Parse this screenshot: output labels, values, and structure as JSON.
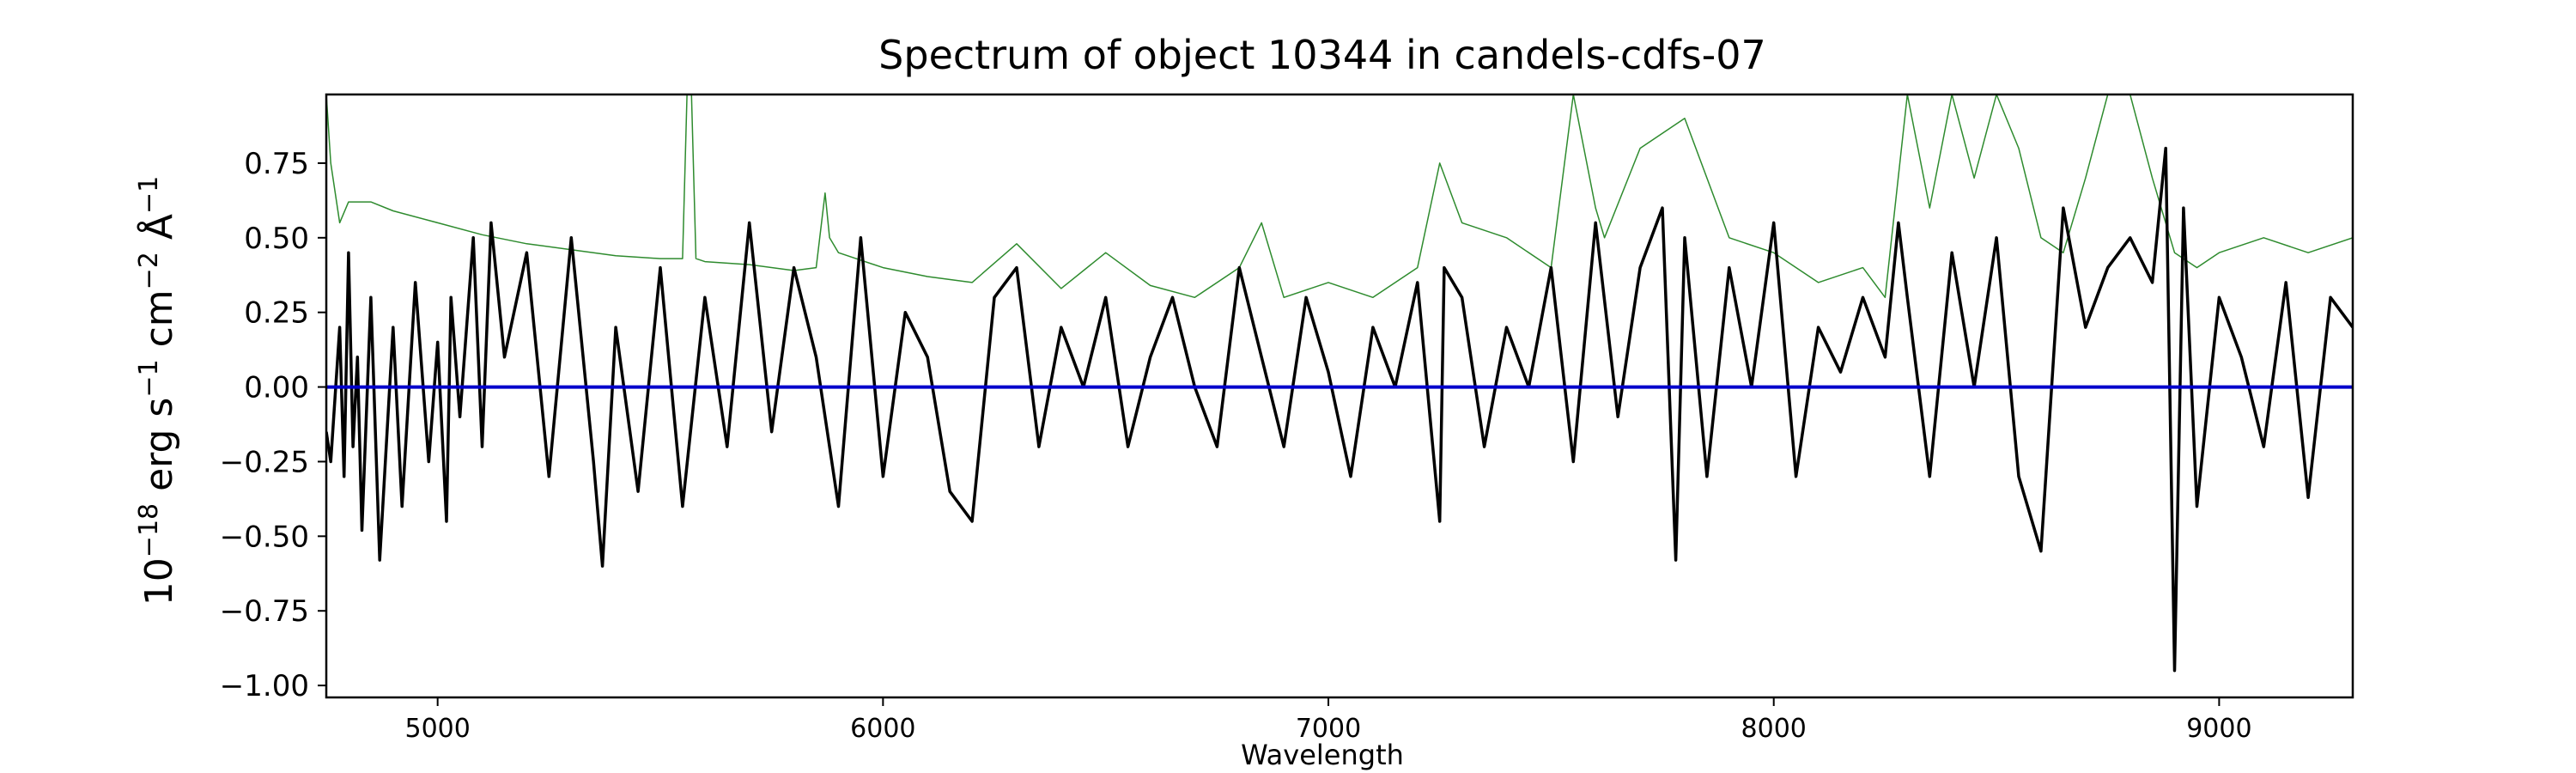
{
  "chart_data": {
    "type": "line",
    "title": "Spectrum of object 10344 in candels-cdfs-07",
    "xlabel": "Wavelength",
    "ylabel_base": "10",
    "ylabel_exp": "−18",
    "ylabel_units": [
      {
        "text": " erg s",
        "sup": "−1"
      },
      {
        "text": " cm",
        "sup": "−2"
      },
      {
        "text": " Å",
        "sup": "−1"
      }
    ],
    "xlim": [
      4750,
      9300
    ],
    "ylim": [
      -1.04,
      0.98
    ],
    "x_ticks": [
      5000,
      6000,
      7000,
      8000,
      9000
    ],
    "x_tick_labels": [
      "5000",
      "6000",
      "7000",
      "8000",
      "9000"
    ],
    "y_ticks": [
      -1.0,
      -0.75,
      -0.5,
      -0.25,
      0.0,
      0.25,
      0.5,
      0.75
    ],
    "y_tick_labels": [
      "−1.00",
      "−0.75",
      "−0.50",
      "−0.25",
      "0.00",
      "0.25",
      "0.50",
      "0.75"
    ],
    "grid": false,
    "colors": {
      "flux": "#000000",
      "error": "#2e8b2e",
      "zero": "#0000cc"
    },
    "series": [
      {
        "key": "error",
        "x": [
          4750,
          4760,
          4780,
          4800,
          4850,
          4900,
          5000,
          5100,
          5200,
          5300,
          5400,
          5500,
          5550,
          5560,
          5570,
          5580,
          5600,
          5700,
          5800,
          5850,
          5870,
          5880,
          5900,
          6000,
          6100,
          6200,
          6300,
          6400,
          6500,
          6600,
          6700,
          6800,
          6850,
          6900,
          7000,
          7100,
          7200,
          7250,
          7300,
          7400,
          7500,
          7550,
          7600,
          7620,
          7700,
          7800,
          7900,
          8000,
          8100,
          8200,
          8250,
          8300,
          8350,
          8400,
          8450,
          8500,
          8550,
          8600,
          8650,
          8700,
          8750,
          8780,
          8800,
          8850,
          8900,
          8950,
          9000,
          9100,
          9200,
          9300
        ],
        "y": [
          0.98,
          0.75,
          0.55,
          0.62,
          0.62,
          0.59,
          0.55,
          0.51,
          0.48,
          0.46,
          0.44,
          0.43,
          0.43,
          0.98,
          0.98,
          0.43,
          0.42,
          0.41,
          0.39,
          0.4,
          0.65,
          0.5,
          0.45,
          0.4,
          0.37,
          0.35,
          0.48,
          0.33,
          0.45,
          0.34,
          0.3,
          0.4,
          0.55,
          0.3,
          0.35,
          0.3,
          0.4,
          0.75,
          0.55,
          0.5,
          0.4,
          0.98,
          0.6,
          0.5,
          0.8,
          0.9,
          0.5,
          0.45,
          0.35,
          0.4,
          0.3,
          0.98,
          0.6,
          0.98,
          0.7,
          0.98,
          0.8,
          0.5,
          0.45,
          0.7,
          0.98,
          0.98,
          0.98,
          0.7,
          0.45,
          0.4,
          0.45,
          0.5,
          0.45,
          0.5
        ]
      },
      {
        "key": "flux",
        "x": [
          4750,
          4760,
          4780,
          4790,
          4800,
          4810,
          4820,
          4830,
          4850,
          4870,
          4900,
          4920,
          4950,
          4980,
          5000,
          5020,
          5030,
          5050,
          5080,
          5100,
          5120,
          5150,
          5200,
          5250,
          5300,
          5350,
          5370,
          5400,
          5450,
          5500,
          5550,
          5600,
          5650,
          5700,
          5750,
          5800,
          5850,
          5900,
          5950,
          6000,
          6050,
          6100,
          6150,
          6200,
          6250,
          6300,
          6350,
          6400,
          6450,
          6500,
          6550,
          6600,
          6650,
          6700,
          6750,
          6800,
          6850,
          6900,
          6950,
          7000,
          7050,
          7100,
          7150,
          7200,
          7250,
          7260,
          7300,
          7350,
          7400,
          7450,
          7500,
          7550,
          7600,
          7650,
          7700,
          7750,
          7780,
          7800,
          7850,
          7900,
          7950,
          8000,
          8050,
          8100,
          8150,
          8200,
          8250,
          8280,
          8300,
          8350,
          8400,
          8450,
          8500,
          8550,
          8600,
          8650,
          8700,
          8750,
          8800,
          8850,
          8880,
          8900,
          8920,
          8950,
          9000,
          9050,
          9100,
          9150,
          9200,
          9250,
          9300
        ],
        "y": [
          -0.15,
          -0.25,
          0.2,
          -0.3,
          0.45,
          -0.2,
          0.1,
          -0.48,
          0.3,
          -0.58,
          0.2,
          -0.4,
          0.35,
          -0.25,
          0.15,
          -0.45,
          0.3,
          -0.1,
          0.5,
          -0.2,
          0.55,
          0.1,
          0.45,
          -0.3,
          0.5,
          -0.25,
          -0.6,
          0.2,
          -0.35,
          0.4,
          -0.4,
          0.3,
          -0.2,
          0.55,
          -0.15,
          0.4,
          0.1,
          -0.4,
          0.5,
          -0.3,
          0.25,
          0.1,
          -0.35,
          -0.45,
          0.3,
          0.4,
          -0.2,
          0.2,
          0.0,
          0.3,
          -0.2,
          0.1,
          0.3,
          0.0,
          -0.2,
          0.4,
          0.1,
          -0.2,
          0.3,
          0.05,
          -0.3,
          0.2,
          0.0,
          0.35,
          -0.45,
          0.4,
          0.3,
          -0.2,
          0.2,
          0.0,
          0.4,
          -0.25,
          0.55,
          -0.1,
          0.4,
          0.6,
          -0.58,
          0.5,
          -0.3,
          0.4,
          0.0,
          0.55,
          -0.3,
          0.2,
          0.05,
          0.3,
          0.1,
          0.55,
          0.3,
          -0.3,
          0.45,
          0.0,
          0.5,
          -0.3,
          -0.55,
          0.6,
          0.2,
          0.4,
          0.5,
          0.35,
          0.8,
          -0.95,
          0.6,
          -0.4,
          0.3,
          0.1,
          -0.2,
          0.35,
          -0.37,
          0.3,
          0.2
        ]
      },
      {
        "key": "zero",
        "x": [
          4750,
          9300
        ],
        "y": [
          0.0,
          0.0
        ]
      }
    ]
  }
}
